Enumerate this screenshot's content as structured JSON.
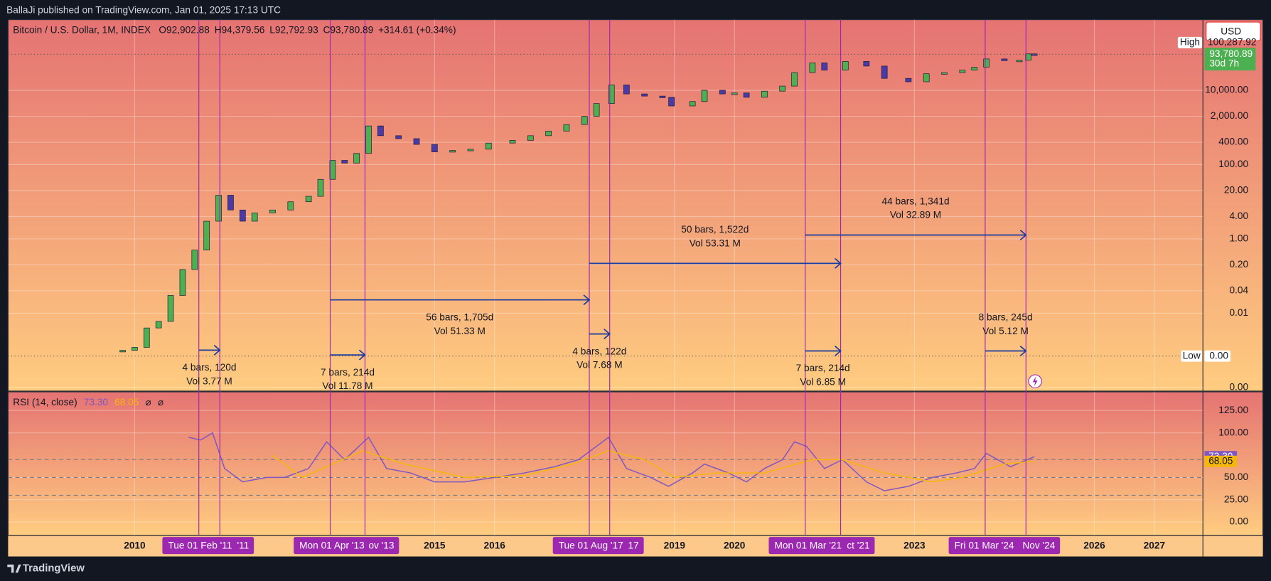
{
  "header": {
    "publisher": "BallaJi published on TradingView.com, Jan 01, 2025 17:13 UTC",
    "brand": "TradingView"
  },
  "chart_data": [
    {
      "type": "candlestick",
      "log_scale": true,
      "grid": true,
      "title": "Bitcoin / U.S. Dollar, 1M, INDEX",
      "ohlc": [
        {
          "prefix": "O",
          "value": 92902.88,
          "label": "92,902.88"
        },
        {
          "prefix": "H",
          "value": 94379.56,
          "label": "94,379.56"
        },
        {
          "prefix": "L",
          "value": 92792.93,
          "label": "92,792.93"
        },
        {
          "prefix": "C",
          "value": 93780.89,
          "label": "93,780.89"
        }
      ],
      "change": "+314.61 (+0.34%)",
      "currency": "USD",
      "up_color": "#4caf50",
      "down_color": "#4a3aa8",
      "x": [
        2009.8,
        2010.0,
        2010.2,
        2010.4,
        2010.6,
        2010.8,
        2011.0,
        2011.2,
        2011.4,
        2011.6,
        2011.8,
        2012.0,
        2012.3,
        2012.6,
        2012.9,
        2013.1,
        2013.3,
        2013.5,
        2013.7,
        2013.9,
        2014.1,
        2014.4,
        2014.7,
        2015.0,
        2015.3,
        2015.6,
        2015.9,
        2016.3,
        2016.6,
        2016.9,
        2017.2,
        2017.5,
        2017.7,
        2017.95,
        2018.2,
        2018.5,
        2018.8,
        2018.95,
        2019.3,
        2019.5,
        2019.8,
        2020.0,
        2020.2,
        2020.5,
        2020.8,
        2021.0,
        2021.3,
        2021.5,
        2021.85,
        2022.2,
        2022.5,
        2022.9,
        2023.2,
        2023.5,
        2023.8,
        2024.0,
        2024.2,
        2024.5,
        2024.75,
        2024.9,
        2025.0
      ],
      "close": [
        0.001,
        0.0012,
        0.004,
        0.006,
        0.03,
        0.15,
        0.5,
        3,
        15,
        6,
        3,
        5,
        6,
        10,
        14,
        40,
        130,
        110,
        200,
        1100,
        600,
        500,
        350,
        220,
        240,
        260,
        380,
        450,
        600,
        800,
        1200,
        2000,
        4400,
        14000,
        8000,
        7000,
        6500,
        3800,
        5000,
        10000,
        8000,
        8500,
        6500,
        9500,
        13000,
        30000,
        55000,
        35000,
        60000,
        45000,
        21000,
        17000,
        28000,
        30000,
        35000,
        42000,
        70000,
        63000,
        65000,
        96000,
        93780.89
      ],
      "price_label": "93,780.89",
      "countdown": "30d 7h",
      "high": {
        "title": "High",
        "value": 100287.92,
        "label": "100,287.92"
      },
      "low": {
        "title": "Low",
        "value": 0.0007,
        "label": "0.00"
      },
      "xlim": [
        2007.89,
        2027.81
      ],
      "xticks": [
        2010,
        2015,
        2016,
        2019,
        2020,
        2023,
        2026,
        2027
      ],
      "ylim": [
        8e-05,
        800000
      ],
      "yticks": [
        {
          "value": 10000,
          "label": "10,000.00"
        },
        {
          "value": 2000,
          "label": "2,000.00"
        },
        {
          "value": 400,
          "label": "400.00"
        },
        {
          "value": 100,
          "label": "100.00"
        },
        {
          "value": 20,
          "label": "20.00"
        },
        {
          "value": 4,
          "label": "4.00"
        },
        {
          "value": 1,
          "label": "1.00"
        },
        {
          "value": 0.2,
          "label": "0.20"
        },
        {
          "value": 0.04,
          "label": "0.04"
        },
        {
          "value": 0.01,
          "label": "0.01"
        },
        {
          "value": 0.0001,
          "label": "0.00"
        }
      ],
      "measures": [
        {
          "start": 2011.07,
          "end": 2011.42,
          "price": 0.00101,
          "bars": "4 bars, 120d",
          "vol": "Vol 3.77 M"
        },
        {
          "start": 2013.26,
          "end": 2013.84,
          "price": 0.00075,
          "bars": "7 bars, 214d",
          "vol": "Vol 11.78 M"
        },
        {
          "start": 2013.26,
          "end": 2017.58,
          "price": 0.0228,
          "bars": "56 bars, 1,705d",
          "vol": "Vol 51.33 M"
        },
        {
          "start": 2017.58,
          "end": 2017.92,
          "price": 0.00276,
          "bars": "4 bars, 122d",
          "vol": "Vol 7.68 M"
        },
        {
          "start": 2017.58,
          "end": 2021.77,
          "price": 0.219,
          "bars": "50 bars, 1,522d",
          "vol": "Vol 53.31 M"
        },
        {
          "start": 2021.18,
          "end": 2021.77,
          "price": 0.00096,
          "bars": "7 bars, 214d",
          "vol": "Vol 6.85 M"
        },
        {
          "start": 2021.18,
          "end": 2024.86,
          "price": 1.27,
          "bars": "44 bars, 1,341d",
          "vol": "Vol 32.89 M"
        },
        {
          "start": 2024.18,
          "end": 2024.86,
          "price": 0.00096,
          "bars": "8 bars, 245d",
          "vol": "Vol 5.12 M"
        }
      ],
      "time_badges": [
        {
          "start": 2011.07,
          "end": 2011.42,
          "start_label": "Tue 01 Feb '11",
          "end_label": "'11"
        },
        {
          "start": 2013.26,
          "end": 2013.84,
          "start_label": "Mon 01 Apr '13",
          "end_label": "ov '13"
        },
        {
          "start": 2017.58,
          "end": 2017.92,
          "start_label": "Tue 01 Aug '17",
          "end_label": "17"
        },
        {
          "start": 2021.18,
          "end": 2021.77,
          "start_label": "Mon 01 Mar '21",
          "end_label": "ct '21"
        },
        {
          "start": 2024.18,
          "end": 2024.86,
          "start_label": "Fri 01 Mar '24",
          "end_label": "Nov '24"
        }
      ]
    },
    {
      "type": "line",
      "title": "RSI (14, close)",
      "extras": [
        "⌀",
        "⌀"
      ],
      "xlim": [
        2007.89,
        2027.81
      ],
      "ylim": [
        -15,
        146
      ],
      "yticks": [
        {
          "value": 125,
          "label": "125.00"
        },
        {
          "value": 100,
          "label": "100.00"
        },
        {
          "value": 50,
          "label": "50.00"
        },
        {
          "value": 25,
          "label": "25.00"
        },
        {
          "value": 0,
          "label": "0.00"
        }
      ],
      "levels": [
        70,
        50,
        30
      ],
      "series": [
        {
          "color": "#7e57c2",
          "last_label": "73.30",
          "x": [
            2010.9,
            2011.1,
            2011.3,
            2011.5,
            2011.8,
            2012.2,
            2012.5,
            2012.9,
            2013.2,
            2013.5,
            2013.9,
            2014.2,
            2014.6,
            2015.0,
            2015.5,
            2016.0,
            2016.5,
            2017.0,
            2017.4,
            2017.7,
            2017.9,
            2018.2,
            2018.6,
            2018.9,
            2019.3,
            2019.5,
            2019.9,
            2020.2,
            2020.5,
            2020.8,
            2021.0,
            2021.2,
            2021.5,
            2021.8,
            2022.2,
            2022.5,
            2022.9,
            2023.3,
            2023.7,
            2024.0,
            2024.2,
            2024.6,
            2025.0
          ],
          "values": [
            95,
            92,
            100,
            60,
            45,
            50,
            50,
            60,
            90,
            70,
            95,
            60,
            55,
            45,
            45,
            50,
            55,
            62,
            70,
            85,
            95,
            60,
            50,
            40,
            55,
            65,
            55,
            45,
            60,
            70,
            90,
            85,
            60,
            70,
            45,
            35,
            40,
            50,
            55,
            60,
            77,
            62,
            73.3
          ]
        },
        {
          "color": "#f5b70a",
          "last_label": "68.05",
          "x": [
            2012.3,
            2012.8,
            2013.3,
            2013.8,
            2014.5,
            2015.5,
            2016.5,
            2017.3,
            2017.9,
            2018.5,
            2019.0,
            2019.7,
            2020.5,
            2021.3,
            2021.8,
            2022.5,
            2023.3,
            2023.8,
            2024.5,
            2025.0
          ],
          "values": [
            75,
            50,
            65,
            80,
            65,
            50,
            52,
            65,
            80,
            70,
            50,
            55,
            55,
            70,
            70,
            55,
            45,
            50,
            65,
            68.05
          ]
        }
      ]
    }
  ]
}
